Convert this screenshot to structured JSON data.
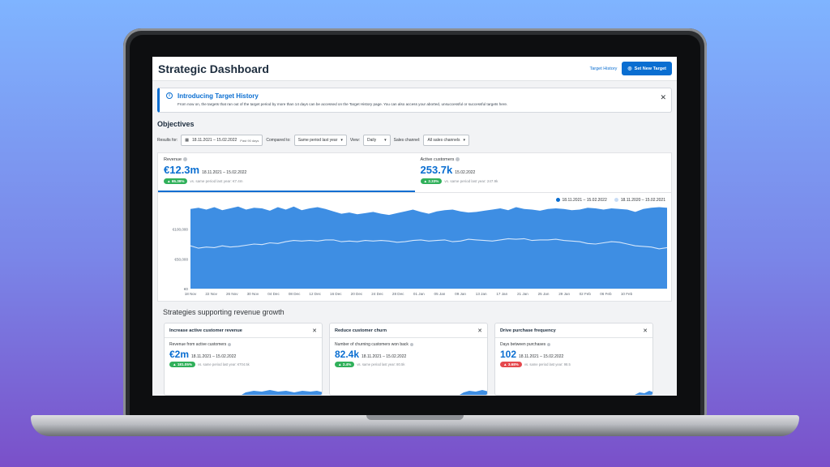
{
  "header": {
    "title": "Strategic Dashboard",
    "target_history_link": "Target History",
    "set_target_button": "Set New Target"
  },
  "banner": {
    "title": "Introducing Target History",
    "text": "From now on, the targets that ran out of the target period by more than 14 days can be accessed on the Target History page. You can also access your aborted, unsuccessful or successful targets here."
  },
  "objectives": {
    "title": "Objectives",
    "filters": {
      "results_for_label": "Results for:",
      "date_range": "18.11.2021 – 15.02.2022",
      "date_hint": "Past 90 days",
      "compared_to_label": "Compared to:",
      "compared_to_value": "Same period last year",
      "view_label": "View:",
      "view_value": "Daily",
      "sales_channel_label": "Sales channel:",
      "sales_channel_value": "All sales channels"
    },
    "kpis": [
      {
        "label": "Revenue",
        "value": "€12.3m",
        "date": "18.11.2021 – 15.02.2022",
        "change": "65.39%",
        "comparison": "vs. same period last year: €7.4m",
        "trend": "up"
      },
      {
        "label": "Active customers",
        "value": "253.7k",
        "date": "15.02.2022",
        "change": "2.33%",
        "comparison": "vs. same period last year: 247.9k",
        "trend": "up"
      }
    ]
  },
  "chart_data": {
    "type": "area",
    "legend": [
      "18.11.2021 – 15.02.2022",
      "18.11.2020 – 15.02.2021"
    ],
    "y_ticks": [
      "€100,000",
      "€50,000",
      "€0"
    ],
    "ylim": [
      0,
      150000
    ],
    "x_ticks": [
      "18 Nov",
      "22 Nov",
      "26 Nov",
      "30 Nov",
      "04 Dec",
      "08 Dec",
      "12 Dec",
      "16 Dec",
      "20 Dec",
      "24 Dec",
      "28 Dec",
      "01 Jan",
      "05 Jan",
      "09 Jan",
      "13 Jan",
      "17 Jan",
      "21 Jan",
      "25 Jan",
      "29 Jan",
      "02 Feb",
      "06 Feb",
      "10 Feb"
    ],
    "series": [
      {
        "name": "18.11.2021 – 15.02.2022",
        "color": "#3e8ee3",
        "values": [
          134000,
          136000,
          133000,
          137000,
          132000,
          135000,
          138000,
          133000,
          136000,
          135000,
          131000,
          137000,
          133000,
          138000,
          132000,
          135000,
          137000,
          134000,
          130000,
          126000,
          128000,
          125000,
          127000,
          129000,
          126000,
          124000,
          127000,
          130000,
          133000,
          129000,
          126000,
          130000,
          132000,
          133000,
          130000,
          128000,
          129000,
          131000,
          133000,
          135000,
          132000,
          137000,
          134000,
          133000,
          131000,
          134000,
          135000,
          134000,
          132000,
          133000,
          136000,
          135000,
          133000,
          135000,
          134000,
          133000,
          129000,
          134000,
          136000,
          137000,
          136000
        ]
      },
      {
        "name": "18.11.2020 – 15.02.2021",
        "color": "#d6e7fb",
        "values": [
          72000,
          68000,
          70000,
          69000,
          72000,
          70000,
          71000,
          73000,
          75000,
          74000,
          77000,
          76000,
          79000,
          81000,
          80000,
          81000,
          80000,
          82000,
          82000,
          79000,
          80000,
          79000,
          81000,
          80000,
          81000,
          80000,
          78000,
          79000,
          81000,
          82000,
          80000,
          81000,
          82000,
          79000,
          80000,
          83000,
          82000,
          81000,
          80000,
          82000,
          84000,
          83000,
          84000,
          81000,
          82000,
          82000,
          83000,
          81000,
          80000,
          79000,
          76000,
          75000,
          77000,
          79000,
          78000,
          75000,
          72000,
          71000,
          70000,
          67000,
          69000
        ]
      }
    ]
  },
  "strategies": {
    "title": "Strategies supporting revenue growth",
    "cards": [
      {
        "title": "Increase active customer revenue",
        "label": "Revenue from active customers",
        "value": "€2m",
        "date": "18.11.2021 – 15.02.2022",
        "change": "181.05%",
        "comparison": "vs. same period last year: €704.5k",
        "trend": "up"
      },
      {
        "title": "Reduce customer churn",
        "label": "Number of churning customers won back",
        "value": "82.4k",
        "date": "18.11.2021 – 15.02.2022",
        "change": "2.4%",
        "comparison": "vs. same period last year: 80.5k",
        "trend": "up"
      },
      {
        "title": "Drive purchase frequency",
        "label": "Days between purchases",
        "value": "102",
        "date": "18.11.2021 – 15.02.2022",
        "change": "3.68%",
        "comparison": "vs. same period last year: 98.5",
        "trend": "up"
      }
    ]
  },
  "colors": {
    "accent": "#0a6ed1",
    "positive": "#30b05a",
    "negative": "#e5484d",
    "area": "#3e8ee3",
    "prior_line": "#d6e7fb"
  }
}
